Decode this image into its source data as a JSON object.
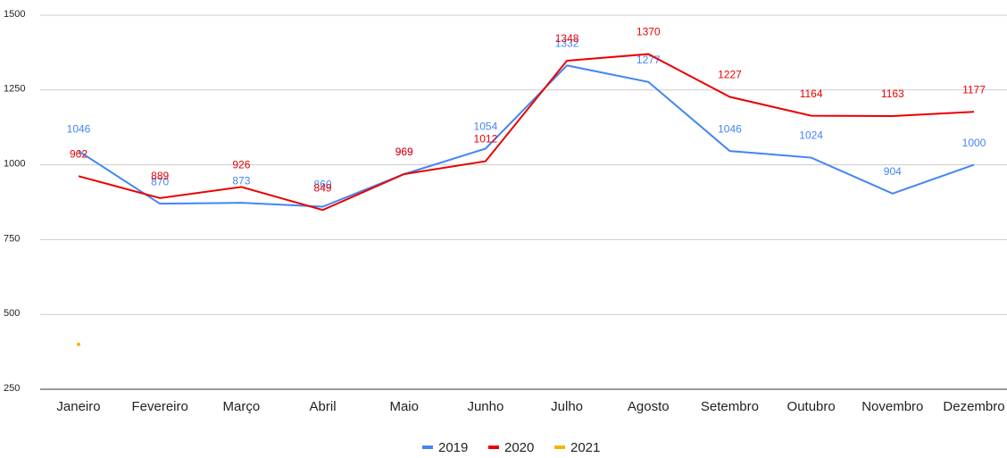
{
  "chart_data": {
    "type": "line",
    "categories": [
      "Janeiro",
      "Fevereiro",
      "Março",
      "Abril",
      "Maio",
      "Junho",
      "Julho",
      "Agosto",
      "Setembro",
      "Outubro",
      "Novembro",
      "Dezembro"
    ],
    "series": [
      {
        "name": "2019",
        "color": "#4285f4",
        "data_labels": true,
        "values": [
          1046,
          870,
          873,
          860,
          969,
          1054,
          1332,
          1277,
          1046,
          1024,
          904,
          1000
        ]
      },
      {
        "name": "2020",
        "color": "#ea0000",
        "data_labels": true,
        "values": [
          962,
          889,
          926,
          849,
          969,
          1012,
          1348,
          1370,
          1227,
          1164,
          1163,
          1177
        ]
      },
      {
        "name": "2021",
        "color": "#f4b400",
        "data_labels": false,
        "values": [
          400,
          null,
          null,
          null,
          null,
          null,
          null,
          null,
          null,
          null,
          null,
          null
        ]
      }
    ],
    "ylim": [
      250,
      1500
    ],
    "yticks": [
      250,
      500,
      750,
      1000,
      1250,
      1500
    ],
    "grid": true,
    "legend": "bottom"
  }
}
